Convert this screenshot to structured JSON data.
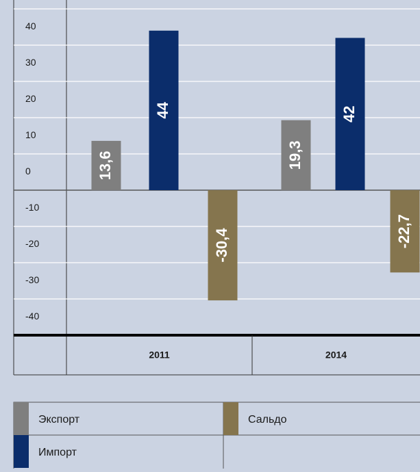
{
  "chart_data": {
    "type": "bar",
    "categories": [
      "2011",
      "2014"
    ],
    "series": [
      {
        "name": "Экспорт",
        "color": "#7f7f7f",
        "values": [
          13.6,
          19.3
        ],
        "value_labels": [
          "13,6",
          "19,3"
        ]
      },
      {
        "name": "Импорт",
        "color": "#0b2d6b",
        "values": [
          44,
          42
        ],
        "value_labels": [
          "44",
          "42"
        ]
      },
      {
        "name": "Сальдо",
        "color": "#85754e",
        "values": [
          -30.4,
          -22.7
        ],
        "value_labels": [
          "-30,4",
          "-22,7"
        ]
      }
    ],
    "ylim": [
      -40,
      50
    ],
    "yticks": [
      40,
      30,
      20,
      10,
      0,
      -10,
      -20,
      -30,
      -40
    ],
    "grid": true
  }
}
